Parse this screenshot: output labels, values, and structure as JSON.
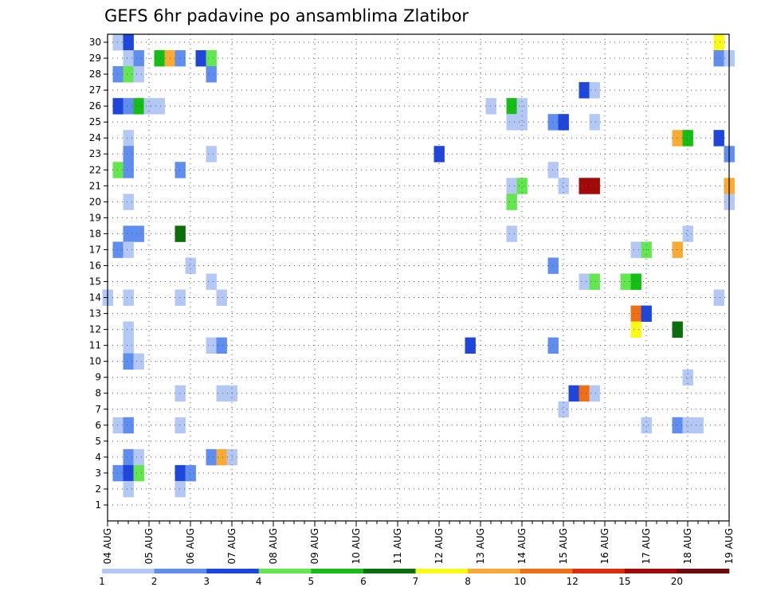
{
  "chart_data": {
    "type": "heatmap",
    "title": "GEFS 6hr padavine po ansamblima Zlatibor",
    "xlabel": "",
    "ylabel": "",
    "x_axis": {
      "labels": [
        "04 AUG",
        "05 AUG",
        "06 AUG",
        "07 AUG",
        "08 AUG",
        "09 AUG",
        "10 AUG",
        "11 AUG",
        "12 AUG",
        "13 AUG",
        "14 AUG",
        "15 AUG",
        "16 AUG",
        "17 AUG",
        "18 AUG",
        "19 AUG"
      ],
      "range_steps": [
        0,
        60
      ],
      "steps_per_day": 4
    },
    "y_axis": {
      "labels": [
        "1",
        "2",
        "3",
        "4",
        "5",
        "6",
        "7",
        "8",
        "9",
        "10",
        "11",
        "12",
        "13",
        "14",
        "15",
        "16",
        "17",
        "18",
        "19",
        "20",
        "21",
        "22",
        "23",
        "24",
        "25",
        "26",
        "27",
        "28",
        "29",
        "30"
      ],
      "range": [
        1,
        30
      ]
    },
    "grid": true,
    "colorbar": {
      "placement": "bottom",
      "labels": [
        "1",
        "2",
        "3",
        "4",
        "5",
        "6",
        "7",
        "8",
        "10",
        "12",
        "15",
        "20"
      ],
      "colors": [
        "#b4c8f5",
        "#5f8ef0",
        "#1e46dc",
        "#64e650",
        "#14be14",
        "#0a6e0a",
        "#fafa14",
        "#faaa32",
        "#f06e14",
        "#dc2d0a",
        "#a00a0a",
        "#6e0a0a"
      ]
    },
    "cells": [
      {
        "step": 1,
        "m": 30,
        "c": 0
      },
      {
        "step": 2,
        "m": 30,
        "c": 2
      },
      {
        "step": 59,
        "m": 30,
        "c": 6
      },
      {
        "step": 2,
        "m": 29,
        "c": 0
      },
      {
        "step": 3,
        "m": 29,
        "c": 1
      },
      {
        "step": 5,
        "m": 29,
        "c": 4
      },
      {
        "step": 6,
        "m": 29,
        "c": 7
      },
      {
        "step": 7,
        "m": 29,
        "c": 1
      },
      {
        "step": 9,
        "m": 29,
        "c": 2
      },
      {
        "step": 10,
        "m": 29,
        "c": 3
      },
      {
        "step": 59,
        "m": 29,
        "c": 1
      },
      {
        "step": 60,
        "m": 29,
        "c": 0
      },
      {
        "step": 1,
        "m": 28,
        "c": 1
      },
      {
        "step": 2,
        "m": 28,
        "c": 3
      },
      {
        "step": 3,
        "m": 28,
        "c": 0
      },
      {
        "step": 10,
        "m": 28,
        "c": 1
      },
      {
        "step": 46,
        "m": 27,
        "c": 2
      },
      {
        "step": 47,
        "m": 27,
        "c": 0
      },
      {
        "step": 1,
        "m": 26,
        "c": 2
      },
      {
        "step": 2,
        "m": 26,
        "c": 1
      },
      {
        "step": 3,
        "m": 26,
        "c": 4
      },
      {
        "step": 4,
        "m": 26,
        "c": 0
      },
      {
        "step": 5,
        "m": 26,
        "c": 0
      },
      {
        "step": 37,
        "m": 26,
        "c": 0
      },
      {
        "step": 39,
        "m": 26,
        "c": 4
      },
      {
        "step": 40,
        "m": 26,
        "c": 0
      },
      {
        "step": 39,
        "m": 25,
        "c": 0
      },
      {
        "step": 40,
        "m": 25,
        "c": 0
      },
      {
        "step": 43,
        "m": 25,
        "c": 1
      },
      {
        "step": 44,
        "m": 25,
        "c": 2
      },
      {
        "step": 47,
        "m": 25,
        "c": 0
      },
      {
        "step": 2,
        "m": 24,
        "c": 0
      },
      {
        "step": 55,
        "m": 24,
        "c": 7
      },
      {
        "step": 56,
        "m": 24,
        "c": 4
      },
      {
        "step": 59,
        "m": 24,
        "c": 2
      },
      {
        "step": 2,
        "m": 23,
        "c": 1
      },
      {
        "step": 10,
        "m": 23,
        "c": 0
      },
      {
        "step": 32,
        "m": 23,
        "c": 2
      },
      {
        "step": 60,
        "m": 23,
        "c": 1
      },
      {
        "step": 1,
        "m": 22,
        "c": 3
      },
      {
        "step": 2,
        "m": 22,
        "c": 1
      },
      {
        "step": 7,
        "m": 22,
        "c": 1
      },
      {
        "step": 43,
        "m": 22,
        "c": 0
      },
      {
        "step": 39,
        "m": 21,
        "c": 0
      },
      {
        "step": 40,
        "m": 21,
        "c": 3
      },
      {
        "step": 44,
        "m": 21,
        "c": 0
      },
      {
        "step": 46,
        "m": 21,
        "c": 10
      },
      {
        "step": 47,
        "m": 21,
        "c": 10
      },
      {
        "step": 60,
        "m": 21,
        "c": 7
      },
      {
        "step": 2,
        "m": 20,
        "c": 0
      },
      {
        "step": 39,
        "m": 20,
        "c": 3
      },
      {
        "step": 60,
        "m": 20,
        "c": 0
      },
      {
        "step": 2,
        "m": 18,
        "c": 1
      },
      {
        "step": 3,
        "m": 18,
        "c": 1
      },
      {
        "step": 7,
        "m": 18,
        "c": 5
      },
      {
        "step": 39,
        "m": 18,
        "c": 0
      },
      {
        "step": 56,
        "m": 18,
        "c": 0
      },
      {
        "step": 1,
        "m": 17,
        "c": 1
      },
      {
        "step": 2,
        "m": 17,
        "c": 0
      },
      {
        "step": 51,
        "m": 17,
        "c": 0
      },
      {
        "step": 52,
        "m": 17,
        "c": 3
      },
      {
        "step": 55,
        "m": 17,
        "c": 7
      },
      {
        "step": 8,
        "m": 16,
        "c": 0
      },
      {
        "step": 43,
        "m": 16,
        "c": 1
      },
      {
        "step": 10,
        "m": 15,
        "c": 0
      },
      {
        "step": 46,
        "m": 15,
        "c": 0
      },
      {
        "step": 47,
        "m": 15,
        "c": 3
      },
      {
        "step": 50,
        "m": 15,
        "c": 3
      },
      {
        "step": 51,
        "m": 15,
        "c": 4
      },
      {
        "step": 0,
        "m": 14,
        "c": 0
      },
      {
        "step": 2,
        "m": 14,
        "c": 0
      },
      {
        "step": 7,
        "m": 14,
        "c": 0
      },
      {
        "step": 11,
        "m": 14,
        "c": 0
      },
      {
        "step": 59,
        "m": 14,
        "c": 0
      },
      {
        "step": 51,
        "m": 13,
        "c": 8
      },
      {
        "step": 52,
        "m": 13,
        "c": 2
      },
      {
        "step": 2,
        "m": 12,
        "c": 0
      },
      {
        "step": 51,
        "m": 12,
        "c": 6
      },
      {
        "step": 55,
        "m": 12,
        "c": 5
      },
      {
        "step": 2,
        "m": 11,
        "c": 0
      },
      {
        "step": 10,
        "m": 11,
        "c": 0
      },
      {
        "step": 11,
        "m": 11,
        "c": 1
      },
      {
        "step": 35,
        "m": 11,
        "c": 2
      },
      {
        "step": 43,
        "m": 11,
        "c": 1
      },
      {
        "step": 2,
        "m": 10,
        "c": 1
      },
      {
        "step": 3,
        "m": 10,
        "c": 0
      },
      {
        "step": 56,
        "m": 9,
        "c": 0
      },
      {
        "step": 7,
        "m": 8,
        "c": 0
      },
      {
        "step": 11,
        "m": 8,
        "c": 0
      },
      {
        "step": 12,
        "m": 8,
        "c": 0
      },
      {
        "step": 45,
        "m": 8,
        "c": 2
      },
      {
        "step": 46,
        "m": 8,
        "c": 8
      },
      {
        "step": 47,
        "m": 8,
        "c": 0
      },
      {
        "step": 44,
        "m": 7,
        "c": 0
      },
      {
        "step": 1,
        "m": 6,
        "c": 0
      },
      {
        "step": 2,
        "m": 6,
        "c": 1
      },
      {
        "step": 7,
        "m": 6,
        "c": 0
      },
      {
        "step": 52,
        "m": 6,
        "c": 0
      },
      {
        "step": 55,
        "m": 6,
        "c": 1
      },
      {
        "step": 56,
        "m": 6,
        "c": 0
      },
      {
        "step": 57,
        "m": 6,
        "c": 0
      },
      {
        "step": 2,
        "m": 4,
        "c": 1
      },
      {
        "step": 3,
        "m": 4,
        "c": 0
      },
      {
        "step": 10,
        "m": 4,
        "c": 1
      },
      {
        "step": 11,
        "m": 4,
        "c": 7
      },
      {
        "step": 12,
        "m": 4,
        "c": 0
      },
      {
        "step": 1,
        "m": 3,
        "c": 1
      },
      {
        "step": 2,
        "m": 3,
        "c": 2
      },
      {
        "step": 3,
        "m": 3,
        "c": 3
      },
      {
        "step": 7,
        "m": 3,
        "c": 2
      },
      {
        "step": 8,
        "m": 3,
        "c": 1
      },
      {
        "step": 2,
        "m": 2,
        "c": 0
      },
      {
        "step": 7,
        "m": 2,
        "c": 0
      }
    ]
  }
}
